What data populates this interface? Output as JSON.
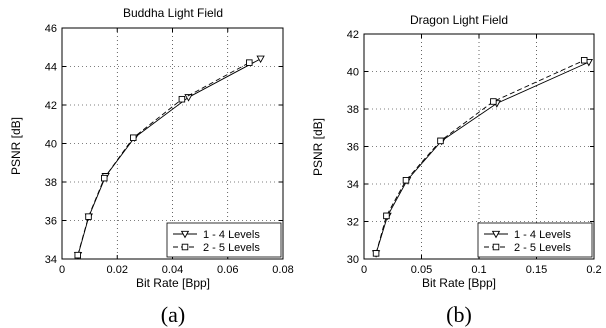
{
  "chart_data": [
    {
      "type": "line",
      "title": "Buddha Light Field",
      "xlabel": "Bit Rate [Bpp]",
      "ylabel": "PSNR [dB]",
      "xlim": [
        0,
        0.08
      ],
      "ylim": [
        34,
        46
      ],
      "xticks": [
        0,
        0.02,
        0.04,
        0.06,
        0.08
      ],
      "xtick_labels": [
        "0",
        "0.02",
        "0.04",
        "0.06",
        "0.08"
      ],
      "yticks": [
        34,
        36,
        38,
        40,
        42,
        44,
        46
      ],
      "ytick_labels": [
        "34",
        "36",
        "38",
        "40",
        "42",
        "44",
        "46"
      ],
      "grid": true,
      "legend_position": "bottom-right",
      "series": [
        {
          "name": "1 - 4 Levels",
          "marker": "triangle-down",
          "line": "solid",
          "x": [
            0.0058,
            0.0097,
            0.0158,
            0.0262,
            0.0458,
            0.0719
          ],
          "y": [
            34.2,
            36.2,
            38.3,
            40.3,
            42.4,
            44.4
          ]
        },
        {
          "name": "2 - 5 Levels",
          "marker": "square",
          "line": "dashed",
          "x": [
            0.0057,
            0.0096,
            0.0153,
            0.0258,
            0.0434,
            0.0678
          ],
          "y": [
            34.2,
            36.2,
            38.2,
            40.3,
            42.3,
            44.2
          ]
        }
      ],
      "caption": "(a)"
    },
    {
      "type": "line",
      "title": "Dragon Light Field",
      "xlabel": "Bit Rate [Bpp]",
      "ylabel": "PSNR [dB]",
      "xlim": [
        0,
        0.2
      ],
      "ylim": [
        30,
        42
      ],
      "xticks": [
        0,
        0.05,
        0.1,
        0.15,
        0.2
      ],
      "xtick_labels": [
        "0",
        "0.05",
        "0.1",
        "0.15",
        "0.2"
      ],
      "yticks": [
        30,
        32,
        34,
        36,
        38,
        40,
        42
      ],
      "ytick_labels": [
        "30",
        "32",
        "34",
        "36",
        "38",
        "40",
        "42"
      ],
      "grid": true,
      "legend_position": "bottom-right",
      "series": [
        {
          "name": "1 - 4 Levels",
          "marker": "triangle-down",
          "line": "solid",
          "x": [
            0.0105,
            0.0205,
            0.0375,
            0.0675,
            0.1155,
            0.1955
          ],
          "y": [
            30.3,
            32.3,
            34.2,
            36.3,
            38.3,
            40.5
          ]
        },
        {
          "name": "2 - 5 Levels",
          "marker": "square",
          "line": "dashed",
          "x": [
            0.0105,
            0.0195,
            0.0365,
            0.0665,
            0.1125,
            0.1915
          ],
          "y": [
            30.3,
            32.3,
            34.2,
            36.3,
            38.4,
            40.6
          ]
        }
      ],
      "caption": "(b)"
    }
  ]
}
